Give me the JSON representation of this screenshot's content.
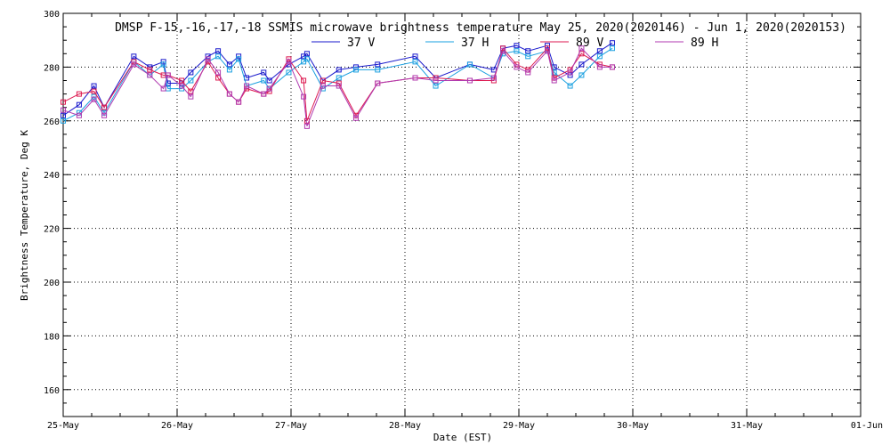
{
  "chart_data": {
    "type": "line",
    "title": "DMSP F-15,-16,-17,-18 SSMIS microwave brightness temperature May 25, 2020(2020146) - Jun  1, 2020(2020153)",
    "xlabel": "Date (EST)",
    "ylabel": "Brightness Temperature, Deg K",
    "xlim": [
      "2020-05-25",
      "2020-06-01"
    ],
    "ylim": [
      150,
      300
    ],
    "x_ticks": [
      "25-May",
      "26-May",
      "27-May",
      "28-May",
      "29-May",
      "30-May",
      "31-May",
      "01-Jun"
    ],
    "y_ticks": [
      160,
      180,
      200,
      220,
      240,
      260,
      280,
      300
    ],
    "grid": true,
    "legend_position": "top",
    "series": [
      {
        "name": "37 V",
        "color": "#1a1acc",
        "x": [
          0.0,
          0.14,
          0.27,
          0.36,
          0.62,
          0.76,
          0.88,
          0.92,
          1.04,
          1.12,
          1.27,
          1.36,
          1.46,
          1.54,
          1.61,
          1.76,
          1.81,
          1.98,
          2.11,
          2.14,
          2.28,
          2.42,
          2.57,
          2.76,
          3.09,
          3.27,
          3.57,
          3.78,
          3.86,
          3.98,
          4.08,
          4.25,
          4.31,
          4.45,
          4.55,
          4.71,
          4.82
        ],
        "y": [
          262,
          266,
          273,
          265,
          284,
          280,
          282,
          274,
          274,
          278,
          284,
          286,
          281,
          284,
          276,
          278,
          275,
          281,
          284,
          285,
          275,
          279,
          280,
          281,
          284,
          276,
          281,
          279,
          287,
          288,
          286,
          288,
          280,
          277,
          281,
          286,
          289
        ]
      },
      {
        "name": "37 H",
        "color": "#1aa0e0",
        "x": [
          0.0,
          0.14,
          0.27,
          0.36,
          0.62,
          0.76,
          0.88,
          0.92,
          1.04,
          1.12,
          1.27,
          1.36,
          1.46,
          1.54,
          1.61,
          1.76,
          1.81,
          1.98,
          2.11,
          2.14,
          2.28,
          2.42,
          2.57,
          2.76,
          3.09,
          3.27,
          3.57,
          3.78,
          3.86,
          3.98,
          4.08,
          4.25,
          4.31,
          4.45,
          4.55,
          4.71,
          4.82
        ],
        "y": [
          260,
          263,
          269,
          263,
          282,
          277,
          281,
          272,
          272,
          275,
          282,
          284,
          279,
          283,
          273,
          275,
          272,
          278,
          282,
          283,
          272,
          276,
          279,
          279,
          282,
          273,
          281,
          276,
          285,
          286,
          284,
          286,
          278,
          273,
          277,
          284,
          287
        ]
      },
      {
        "name": "89 V",
        "color": "#dd1a50",
        "x": [
          0.0,
          0.14,
          0.27,
          0.36,
          0.62,
          0.76,
          0.88,
          0.92,
          1.04,
          1.12,
          1.27,
          1.36,
          1.46,
          1.54,
          1.61,
          1.76,
          1.81,
          1.98,
          2.11,
          2.14,
          2.28,
          2.42,
          2.57,
          2.76,
          3.09,
          3.27,
          3.57,
          3.78,
          3.86,
          3.98,
          4.08,
          4.25,
          4.31,
          4.45,
          4.55,
          4.71,
          4.82
        ],
        "y": [
          267,
          270,
          271,
          265,
          282,
          279,
          277,
          277,
          275,
          271,
          282,
          276,
          270,
          267,
          272,
          270,
          271,
          283,
          275,
          260,
          275,
          274,
          262,
          274,
          276,
          276,
          275,
          275,
          287,
          281,
          279,
          287,
          276,
          279,
          285,
          281,
          280
        ]
      },
      {
        "name": "89 H",
        "color": "#b03ab0",
        "x": [
          0.0,
          0.14,
          0.27,
          0.36,
          0.62,
          0.76,
          0.88,
          0.92,
          1.04,
          1.12,
          1.27,
          1.36,
          1.46,
          1.54,
          1.61,
          1.76,
          1.81,
          1.98,
          2.11,
          2.14,
          2.28,
          2.42,
          2.57,
          2.76,
          3.09,
          3.27,
          3.57,
          3.78,
          3.86,
          3.98,
          4.08,
          4.25,
          4.31,
          4.45,
          4.55,
          4.71,
          4.82
        ],
        "y": [
          264,
          262,
          268,
          262,
          281,
          277,
          272,
          277,
          273,
          269,
          283,
          278,
          270,
          267,
          273,
          270,
          272,
          282,
          269,
          258,
          273,
          273,
          261,
          274,
          276,
          275,
          275,
          276,
          286,
          280,
          278,
          286,
          275,
          278,
          287,
          280,
          280
        ]
      }
    ]
  }
}
